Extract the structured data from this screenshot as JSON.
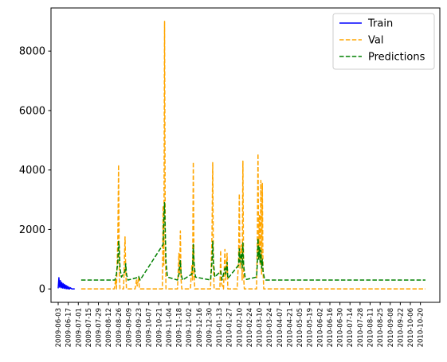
{
  "chart_data": {
    "type": "line",
    "title": "",
    "xlabel": "",
    "ylabel": "",
    "x_tick_labels": [
      "2009-06-03",
      "2009-06-17",
      "2009-07-01",
      "2009-07-15",
      "2009-07-29",
      "2009-08-12",
      "2009-08-26",
      "2009-09-09",
      "2009-09-23",
      "2009-10-07",
      "2009-10-21",
      "2009-11-04",
      "2009-11-18",
      "2009-12-02",
      "2009-12-16",
      "2009-12-30",
      "2010-01-13",
      "2010-01-27",
      "2010-02-10",
      "2010-02-24",
      "2010-03-10",
      "2010-03-24",
      "2010-04-07",
      "2010-04-21",
      "2010-05-05",
      "2010-05-19",
      "2010-06-02",
      "2010-06-16",
      "2010-06-30",
      "2010-07-14",
      "2010-07-28",
      "2010-08-11",
      "2010-08-25",
      "2010-09-08",
      "2010-09-22",
      "2010-10-06",
      "2010-10-20"
    ],
    "xlim": [
      "2009-05-24",
      "2010-11-16"
    ],
    "y_ticks": [
      0,
      2000,
      4000,
      6000,
      8000
    ],
    "ylim": [
      -450,
      9450
    ],
    "grid": false,
    "legend": {
      "position": "top-right"
    },
    "series": [
      {
        "name": "Train",
        "color": "#0000ff",
        "style": "solid",
        "points": [
          [
            "2009-06-03",
            20
          ],
          [
            "2009-06-04",
            380
          ],
          [
            "2009-06-05",
            60
          ],
          [
            "2009-06-06",
            280
          ],
          [
            "2009-06-07",
            40
          ],
          [
            "2009-06-08",
            220
          ],
          [
            "2009-06-09",
            30
          ],
          [
            "2009-06-10",
            180
          ],
          [
            "2009-06-11",
            20
          ],
          [
            "2009-06-12",
            150
          ],
          [
            "2009-06-13",
            10
          ],
          [
            "2009-06-14",
            120
          ],
          [
            "2009-06-15",
            5
          ],
          [
            "2009-06-16",
            90
          ],
          [
            "2009-06-17",
            0
          ],
          [
            "2009-06-18",
            60
          ],
          [
            "2009-06-19",
            0
          ],
          [
            "2009-06-20",
            40
          ],
          [
            "2009-06-22",
            0
          ],
          [
            "2009-06-26",
            0
          ]
        ]
      },
      {
        "name": "Val",
        "color": "#ffa500",
        "style": "dashed",
        "points": [
          [
            "2009-07-05",
            0
          ],
          [
            "2009-08-20",
            0
          ],
          [
            "2009-08-22",
            300
          ],
          [
            "2009-08-23",
            0
          ],
          [
            "2009-08-25",
            1700
          ],
          [
            "2009-08-26",
            4180
          ],
          [
            "2009-08-27",
            600
          ],
          [
            "2009-08-28",
            0
          ],
          [
            "2009-09-02",
            0
          ],
          [
            "2009-09-04",
            1750
          ],
          [
            "2009-09-05",
            600
          ],
          [
            "2009-09-06",
            0
          ],
          [
            "2009-09-18",
            0
          ],
          [
            "2009-09-20",
            300
          ],
          [
            "2009-09-21",
            100
          ],
          [
            "2009-09-23",
            400
          ],
          [
            "2009-09-24",
            0
          ],
          [
            "2009-10-26",
            0
          ],
          [
            "2009-10-27",
            2800
          ],
          [
            "2009-10-28",
            800
          ],
          [
            "2009-10-29",
            9000
          ],
          [
            "2009-10-30",
            1500
          ],
          [
            "2009-10-31",
            0
          ],
          [
            "2009-11-16",
            0
          ],
          [
            "2009-11-18",
            1200
          ],
          [
            "2009-11-19",
            500
          ],
          [
            "2009-11-20",
            1950
          ],
          [
            "2009-11-21",
            300
          ],
          [
            "2009-11-22",
            0
          ],
          [
            "2009-12-04",
            0
          ],
          [
            "2009-12-06",
            800
          ],
          [
            "2009-12-07",
            300
          ],
          [
            "2009-12-08",
            4270
          ],
          [
            "2009-12-09",
            600
          ],
          [
            "2009-12-10",
            0
          ],
          [
            "2010-01-01",
            0
          ],
          [
            "2010-01-03",
            1800
          ],
          [
            "2010-01-04",
            4250
          ],
          [
            "2010-01-05",
            700
          ],
          [
            "2010-01-06",
            0
          ],
          [
            "2010-01-14",
            0
          ],
          [
            "2010-01-15",
            1300
          ],
          [
            "2010-01-16",
            200
          ],
          [
            "2010-01-19",
            0
          ],
          [
            "2010-01-21",
            1330
          ],
          [
            "2010-01-22",
            300
          ],
          [
            "2010-01-24",
            1200
          ],
          [
            "2010-01-25",
            0
          ],
          [
            "2010-02-07",
            0
          ],
          [
            "2010-02-09",
            1000
          ],
          [
            "2010-02-10",
            3200
          ],
          [
            "2010-02-11",
            700
          ],
          [
            "2010-02-13",
            1500
          ],
          [
            "2010-02-14",
            300
          ],
          [
            "2010-02-15",
            4300
          ],
          [
            "2010-02-16",
            400
          ],
          [
            "2010-02-17",
            0
          ],
          [
            "2010-03-06",
            0
          ],
          [
            "2010-03-07",
            1500
          ],
          [
            "2010-03-08",
            4550
          ],
          [
            "2010-03-09",
            1000
          ],
          [
            "2010-03-10",
            2500
          ],
          [
            "2010-03-11",
            800
          ],
          [
            "2010-03-12",
            3650
          ],
          [
            "2010-03-13",
            500
          ],
          [
            "2010-03-14",
            3550
          ],
          [
            "2010-03-15",
            600
          ],
          [
            "2010-03-16",
            0
          ],
          [
            "2010-10-27",
            0
          ]
        ]
      },
      {
        "name": "Predictions",
        "color": "#008000",
        "style": "dashed",
        "points": [
          [
            "2009-07-05",
            300
          ],
          [
            "2009-08-21",
            300
          ],
          [
            "2009-08-23",
            500
          ],
          [
            "2009-08-25",
            900
          ],
          [
            "2009-08-26",
            1600
          ],
          [
            "2009-08-27",
            1400
          ],
          [
            "2009-08-28",
            700
          ],
          [
            "2009-08-30",
            400
          ],
          [
            "2009-09-04",
            600
          ],
          [
            "2009-09-05",
            850
          ],
          [
            "2009-09-06",
            500
          ],
          [
            "2009-09-08",
            300
          ],
          [
            "2009-09-21",
            380
          ],
          [
            "2009-09-23",
            420
          ],
          [
            "2009-09-25",
            300
          ],
          [
            "2009-10-27",
            1500
          ],
          [
            "2009-10-28",
            2400
          ],
          [
            "2009-10-29",
            2900
          ],
          [
            "2009-10-30",
            1900
          ],
          [
            "2009-10-31",
            900
          ],
          [
            "2009-11-02",
            400
          ],
          [
            "2009-11-16",
            300
          ],
          [
            "2009-11-18",
            500
          ],
          [
            "2009-11-19",
            800
          ],
          [
            "2009-11-20",
            950
          ],
          [
            "2009-11-21",
            500
          ],
          [
            "2009-11-23",
            300
          ],
          [
            "2009-12-06",
            500
          ],
          [
            "2009-12-07",
            700
          ],
          [
            "2009-12-08",
            1500
          ],
          [
            "2009-12-09",
            900
          ],
          [
            "2009-12-11",
            400
          ],
          [
            "2010-01-01",
            300
          ],
          [
            "2010-01-03",
            900
          ],
          [
            "2010-01-04",
            1600
          ],
          [
            "2010-01-05",
            900
          ],
          [
            "2010-01-07",
            400
          ],
          [
            "2010-01-15",
            600
          ],
          [
            "2010-01-17",
            300
          ],
          [
            "2010-01-21",
            700
          ],
          [
            "2010-01-22",
            500
          ],
          [
            "2010-01-24",
            900
          ],
          [
            "2010-01-25",
            350
          ],
          [
            "2010-02-09",
            800
          ],
          [
            "2010-02-10",
            1350
          ],
          [
            "2010-02-11",
            900
          ],
          [
            "2010-02-13",
            1200
          ],
          [
            "2010-02-14",
            700
          ],
          [
            "2010-02-15",
            1550
          ],
          [
            "2010-02-16",
            800
          ],
          [
            "2010-02-18",
            400
          ],
          [
            "2010-02-20",
            320
          ],
          [
            "2010-03-06",
            400
          ],
          [
            "2010-03-07",
            800
          ],
          [
            "2010-03-08",
            1700
          ],
          [
            "2010-03-09",
            1000
          ],
          [
            "2010-03-10",
            1400
          ],
          [
            "2010-03-11",
            900
          ],
          [
            "2010-03-12",
            1300
          ],
          [
            "2010-03-13",
            700
          ],
          [
            "2010-03-14",
            1000
          ],
          [
            "2010-03-15",
            600
          ],
          [
            "2010-03-17",
            350
          ],
          [
            "2010-03-19",
            300
          ],
          [
            "2010-10-27",
            300
          ]
        ]
      }
    ]
  }
}
